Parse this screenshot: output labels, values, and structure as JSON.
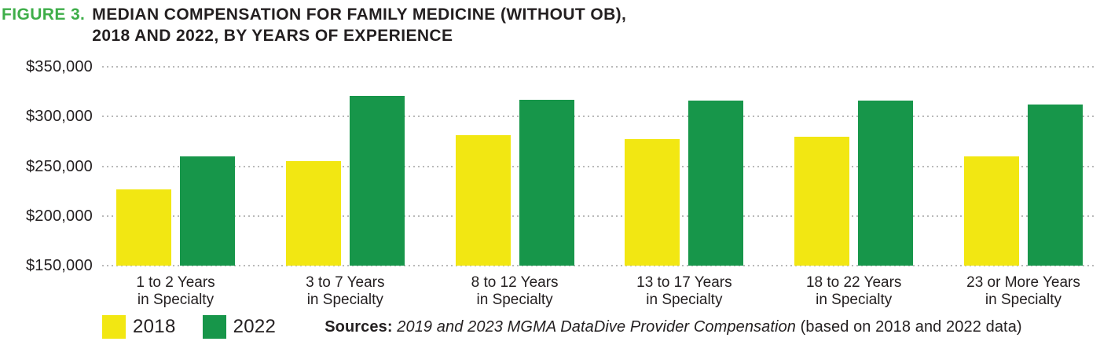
{
  "title": {
    "figure_label": "FIGURE 3.",
    "line1": "MEDIAN COMPENSATION FOR FAMILY MEDICINE (WITHOUT OB),",
    "line2": "2018 AND 2022, BY YEARS OF EXPERIENCE"
  },
  "colors": {
    "bar_2018_yellow": "#F2E712",
    "bar_2022_green": "#17964A",
    "figure_label_green": "#3EAE49",
    "text_dark": "#231F20",
    "gridline_gray": "#B9B9B9"
  },
  "legend": {
    "items": [
      {
        "label": "2018",
        "color": "#F2E712"
      },
      {
        "label": "2022",
        "color": "#17964A"
      }
    ]
  },
  "source": {
    "prefix_bold": "Sources",
    "separator": ": ",
    "italic_text": "2019 and 2023 MGMA DataDive Provider Compensation",
    "suffix": " (based on 2018 and 2022 data)"
  },
  "chart_data": {
    "type": "bar",
    "title": "Median compensation for family medicine (without OB), 2018 and 2022, by years of experience",
    "categories": [
      "1 to 2 Years in Specialty",
      "3 to 7 Years in Specialty",
      "8 to 12 Years in Specialty",
      "13 to 17 Years in Specialty",
      "18 to 22 Years in Specialty",
      "23 or More Years in Specialty"
    ],
    "category_lines": [
      [
        "1 to 2 Years",
        "in Specialty"
      ],
      [
        "3 to 7 Years",
        "in Specialty"
      ],
      [
        "8 to 12 Years",
        "in Specialty"
      ],
      [
        "13 to 17 Years",
        "in Specialty"
      ],
      [
        "18 to 22 Years",
        "in Specialty"
      ],
      [
        "23 or More Years",
        "in Specialty"
      ]
    ],
    "series": [
      {
        "name": "2018",
        "color": "#F2E712",
        "values": [
          227000,
          255000,
          281000,
          277000,
          280000,
          260000
        ]
      },
      {
        "name": "2022",
        "color": "#17964A",
        "values": [
          260000,
          321000,
          317000,
          316000,
          316000,
          312000
        ]
      }
    ],
    "xlabel": "",
    "ylabel": "",
    "ylim": [
      150000,
      350000
    ],
    "ytick_step": 50000,
    "yticks_top_to_bottom": [
      "$350,000",
      "$300,000",
      "$250,000",
      "$200,000",
      "$150,000"
    ],
    "grid": "horizontal-dotted",
    "legend_position": "bottom-left"
  }
}
